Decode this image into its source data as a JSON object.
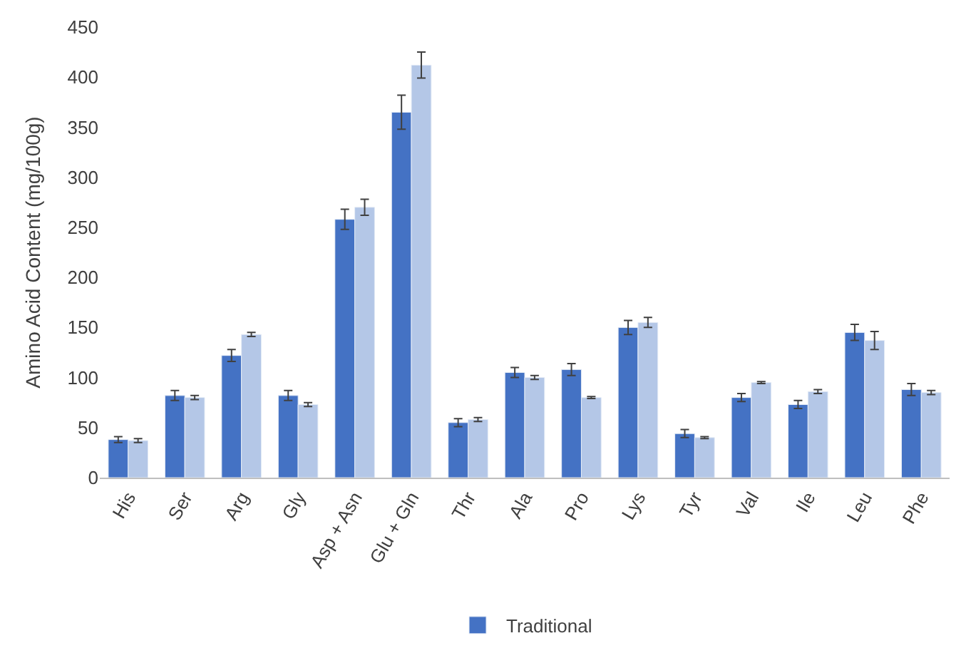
{
  "chart_data": {
    "type": "bar",
    "ylabel": "Amino Acid Content (mg/100g)",
    "categories": [
      "His",
      "Ser",
      "Arg",
      "Gly",
      "Asp + Asn",
      "Glu + Gln",
      "Thr",
      "Ala",
      "Pro",
      "Lys",
      "Tyr",
      "Val",
      "Ile",
      "Leu",
      "Phe"
    ],
    "series": [
      {
        "name": "Traditional",
        "color": "#4472c4",
        "values": [
          38,
          82,
          122,
          82,
          258,
          365,
          55,
          105,
          108,
          150,
          44,
          80,
          73,
          145,
          88
        ],
        "errors": [
          3,
          5,
          6,
          5,
          10,
          17,
          4,
          5,
          6,
          7,
          4,
          4,
          4,
          8,
          6
        ]
      },
      {
        "color": "#b4c7e7",
        "values": [
          37,
          80,
          143,
          73,
          270,
          412,
          58,
          100,
          80,
          155,
          40,
          95,
          86,
          137,
          85
        ],
        "errors": [
          2,
          2,
          2,
          2,
          8,
          13,
          2,
          2,
          1,
          5,
          1,
          1,
          2,
          9,
          2
        ]
      }
    ],
    "ylim": [
      0,
      450
    ],
    "yticks": [
      0,
      50,
      100,
      150,
      200,
      250,
      300,
      350,
      400,
      450
    ],
    "grid": false,
    "legend": "bottom"
  }
}
